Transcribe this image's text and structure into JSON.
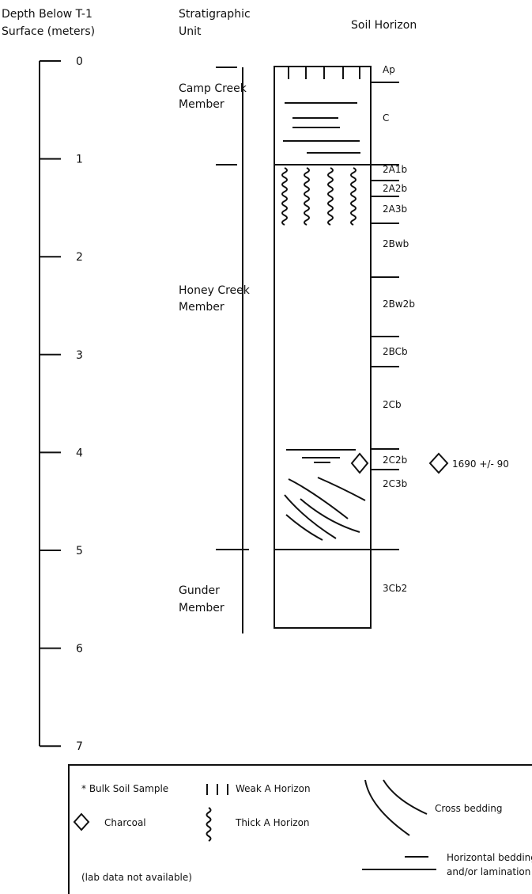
{
  "header": {
    "depth_title": [
      "Depth Below T-1",
      "Surface (meters)"
    ],
    "unit_title": [
      "Stratigraphic",
      "Unit"
    ],
    "horizon_title": "Soil Horizon"
  },
  "depth_scale": {
    "labels": [
      "0",
      "1",
      "2",
      "3",
      "4",
      "5",
      "6",
      "7"
    ]
  },
  "units": {
    "labels": [
      [
        "Camp Creek",
        "Member"
      ],
      [
        "Honey Creek",
        "Member"
      ],
      [
        "Gunder",
        "Member"
      ]
    ]
  },
  "horizons": {
    "labels": [
      "Ap",
      "C",
      "2A1b",
      "2A2b",
      "2A3b",
      "2Bwb",
      "2Bw2b",
      "2BCb",
      "2Cb",
      "2C2b",
      "2C3b",
      "3Cb2"
    ]
  },
  "dating": {
    "label": "1690 +/- 90"
  },
  "legend": {
    "bulk_sample": "* Bulk Soil Sample",
    "weak_a": "Weak A Horizon",
    "charcoal": "Charcoal",
    "thick_a": "Thick A Horizon",
    "lab_note": "(lab data not available)",
    "cross_bedding": "Cross bedding",
    "horizontal_bedding": [
      "Horizontal bedding",
      "and/or lamination"
    ]
  }
}
